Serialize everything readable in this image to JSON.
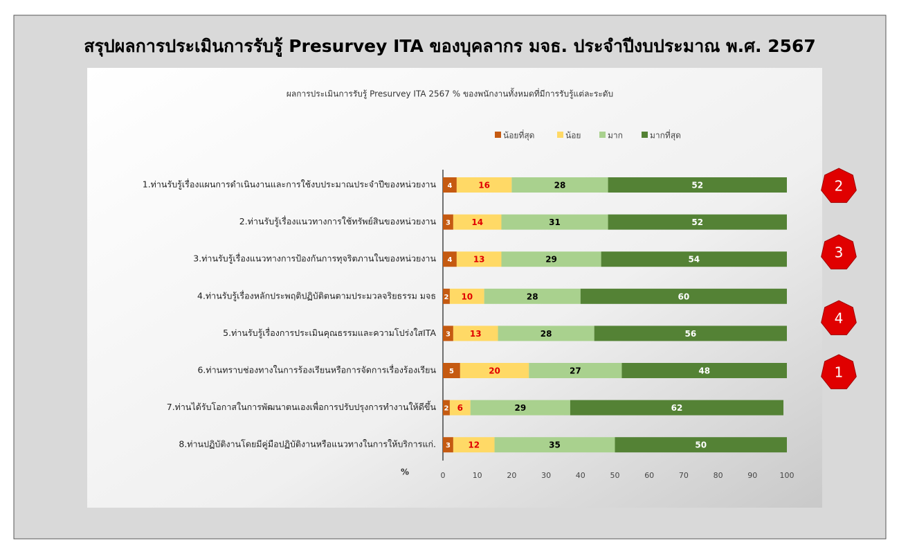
{
  "chart_data": {
    "type": "stacked_barh",
    "page_title": "สรุปผลการประเมินการรับรู้ Presurvey ITA  ของบุคลากร มจธ. ประจำปีงบประมาณ พ.ศ. 2567",
    "title": "ผลการประเมินการรับรู้ Presurvey ITA 2567 % ของพนักงานทั้งหมดที่มีการรับรู้แต่ละระดับ",
    "x_label": "%",
    "categories": [
      "1.ท่านรับรู้เรื่องแผนการดำเนินงานและการใช้งบประมาณประจำปีของหน่วยงาน",
      "2.ท่านรับรู้เรื่องแนวทางการใช้ทรัพย์สินของหน่วยงาน",
      "3.ท่านรับรู้เรื่องแนวทางการป้องกันการทุจริตภานในของหน่วยงาน",
      "4.ท่านรับรู้เรื่องหลักประพฤติปฏิบัติตนตามประมวลจริยธรรม มจธ",
      "5.ท่านรับรู้เรื่องการประเมินคุณธรรมและความโปร่งใสITA",
      "6.ท่านทราบช่องทางในการร้องเรียนหรือการจัดการเรื่องร้องเรียน",
      "7.ท่านได้รับโอกาสในการพัฒนาตนเองเพื่อการปรับปรุงการทำงานให้ดีขึ้น",
      "8.ท่านปฏิบัติงานโดยมีคู่มือปฏิบัติงานหรือแนวทางในการให้บริการแก่."
    ],
    "series": [
      {
        "name": "น้อยที่สุด",
        "color": "#c55a11",
        "label_color": "#ffffff",
        "values": [
          4,
          3,
          4,
          2,
          3,
          5,
          2,
          3
        ]
      },
      {
        "name": "น้อย",
        "color": "#ffd966",
        "label_color": "#e00000",
        "values": [
          16,
          14,
          13,
          10,
          13,
          20,
          6,
          12
        ]
      },
      {
        "name": "มาก",
        "color": "#a9d18e",
        "label_color": "#000000",
        "values": [
          28,
          31,
          29,
          28,
          28,
          27,
          29,
          35
        ]
      },
      {
        "name": "มากที่สุด",
        "color": "#548235",
        "label_color": "#ffffff",
        "values": [
          52,
          52,
          54,
          60,
          56,
          48,
          62,
          50
        ]
      }
    ],
    "xlim": [
      0,
      100
    ],
    "xticks": [
      0,
      10,
      20,
      30,
      40,
      50,
      60,
      70,
      80,
      90,
      100
    ],
    "legend": "top",
    "annotations": [
      "2",
      "3",
      "4",
      "1"
    ]
  }
}
